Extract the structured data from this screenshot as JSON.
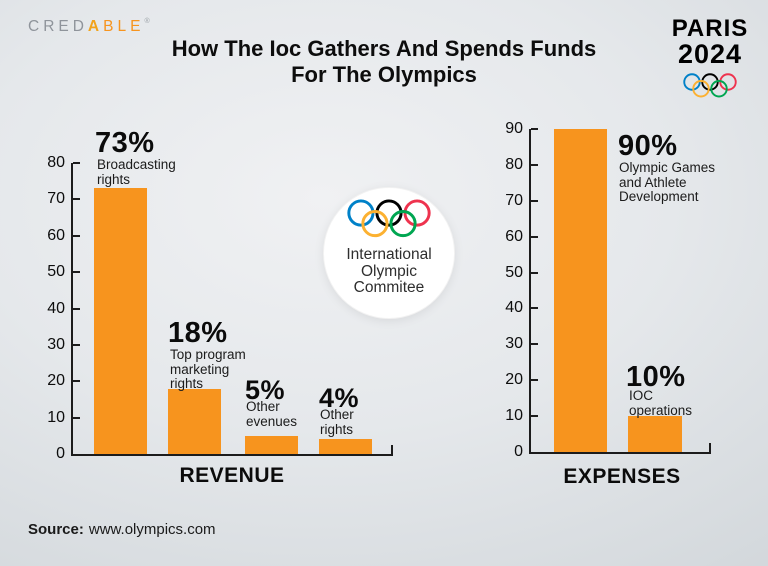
{
  "header": {
    "brand": {
      "gray": "CRED",
      "mark": "A",
      "orange": "BLE",
      "reg": "®"
    },
    "title_line1": "How The Ioc Gathers And Spends Funds",
    "title_line2": "For The Olympics",
    "paris": {
      "line1": "PARIS",
      "line2": "2024"
    }
  },
  "badge": {
    "line1": "International",
    "line2": "Olympic",
    "line3": "Commitee"
  },
  "source": {
    "label": "Source:",
    "value": "www.olympics.com"
  },
  "colors": {
    "bar_orange": "#F7941E",
    "axis": "#1C1C1C",
    "brand_gray": "#8F949B",
    "brand_orange": "#F7941E"
  },
  "ring_colors": {
    "blue": "#0081C8",
    "yellow": "#FCB131",
    "black": "#000000",
    "green": "#00A651",
    "red": "#EE334E"
  },
  "chart_data": [
    {
      "type": "bar",
      "title": "REVENUE",
      "categories": [
        "Broadcasting rights",
        "Top program marketing rights",
        "Other evenues",
        "Other rights"
      ],
      "values": [
        73,
        18,
        5,
        4
      ],
      "value_labels": [
        "73%",
        "18%",
        "5%",
        "4%"
      ],
      "label_lines": [
        [
          "Broadcasting",
          "rights"
        ],
        [
          "Top program",
          "marketing",
          "rights"
        ],
        [
          "Other",
          "evenues"
        ],
        [
          "Other",
          "rights"
        ]
      ],
      "ylim": [
        0,
        80
      ],
      "yticks": [
        0,
        10,
        20,
        30,
        40,
        50,
        60,
        70,
        80
      ],
      "unit": "%",
      "grid": false,
      "bar_color": "#F7941E"
    },
    {
      "type": "bar",
      "title": "EXPENSES",
      "categories": [
        "Olympic Games and Athlete Development",
        "IOC operations"
      ],
      "values": [
        90,
        10
      ],
      "value_labels": [
        "90%",
        "10%"
      ],
      "label_lines": [
        [
          "Olympic Games",
          "and Athlete",
          "Development"
        ],
        [
          "IOC",
          "operations"
        ]
      ],
      "ylim": [
        0,
        90
      ],
      "yticks": [
        0,
        10,
        20,
        30,
        40,
        50,
        60,
        70,
        80,
        90
      ],
      "unit": "%",
      "grid": false,
      "bar_color": "#F7941E"
    }
  ]
}
